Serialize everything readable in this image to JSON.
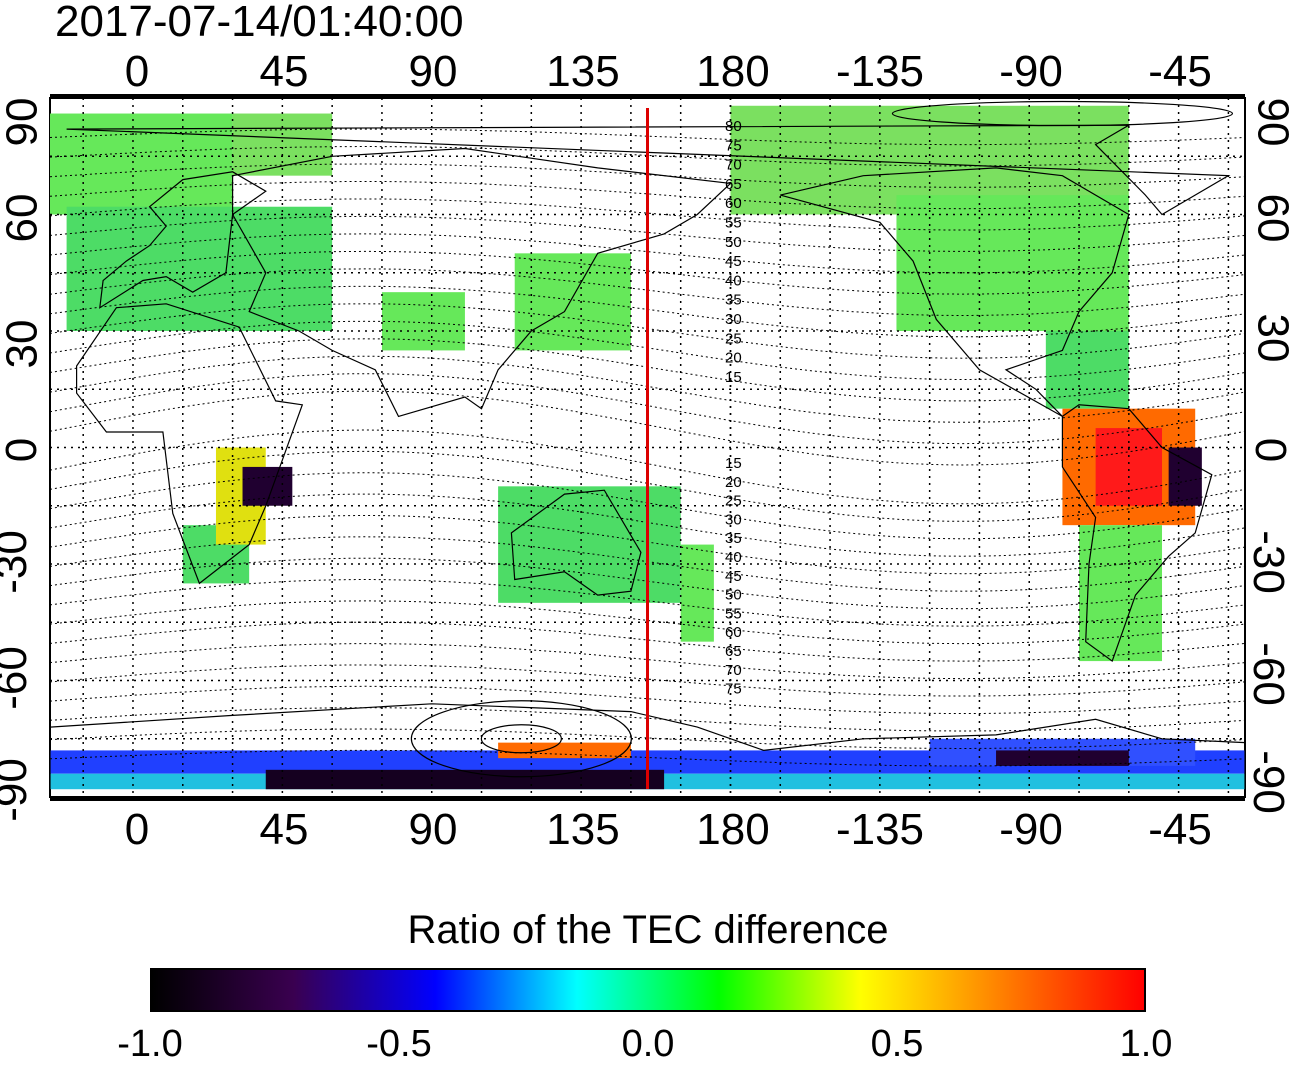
{
  "title": "2017-07-14/01:40:00",
  "map": {
    "top_lon_ticks": [
      "0",
      "45",
      "90",
      "135",
      "180",
      "-135",
      "-90",
      "-45"
    ],
    "bottom_lon_ticks": [
      "0",
      "45",
      "90",
      "135",
      "180",
      "-135",
      "-90",
      "-45"
    ],
    "left_lat_ticks": [
      "90",
      "60",
      "30",
      "0",
      "-30",
      "-60",
      "-90"
    ],
    "right_lat_ticks": [
      "90",
      "60",
      "30",
      "0",
      "-30",
      "-60",
      "-90"
    ],
    "north_contour_labels": [
      "80",
      "75",
      "70",
      "65",
      "60",
      "55",
      "50",
      "45",
      "40",
      "35",
      "30",
      "25",
      "20",
      "15"
    ],
    "south_contour_labels": [
      "15",
      "20",
      "25",
      "30",
      "35",
      "40",
      "45",
      "50",
      "55",
      "60",
      "65",
      "70",
      "75"
    ],
    "terminator_color": "#dd0000",
    "terminator_lon": 155,
    "background": "#ffffff"
  },
  "colorbar": {
    "title": "Ratio of the TEC difference",
    "tick_labels": [
      "-1.0",
      "-0.5",
      "0.0",
      "0.5",
      "1.0"
    ],
    "range": [
      -1.0,
      1.0
    ],
    "colors": [
      "#000000",
      "#3a0050",
      "#0000ff",
      "#00ffff",
      "#00ff00",
      "#ffff00",
      "#ff7f00",
      "#ff0000"
    ]
  }
}
